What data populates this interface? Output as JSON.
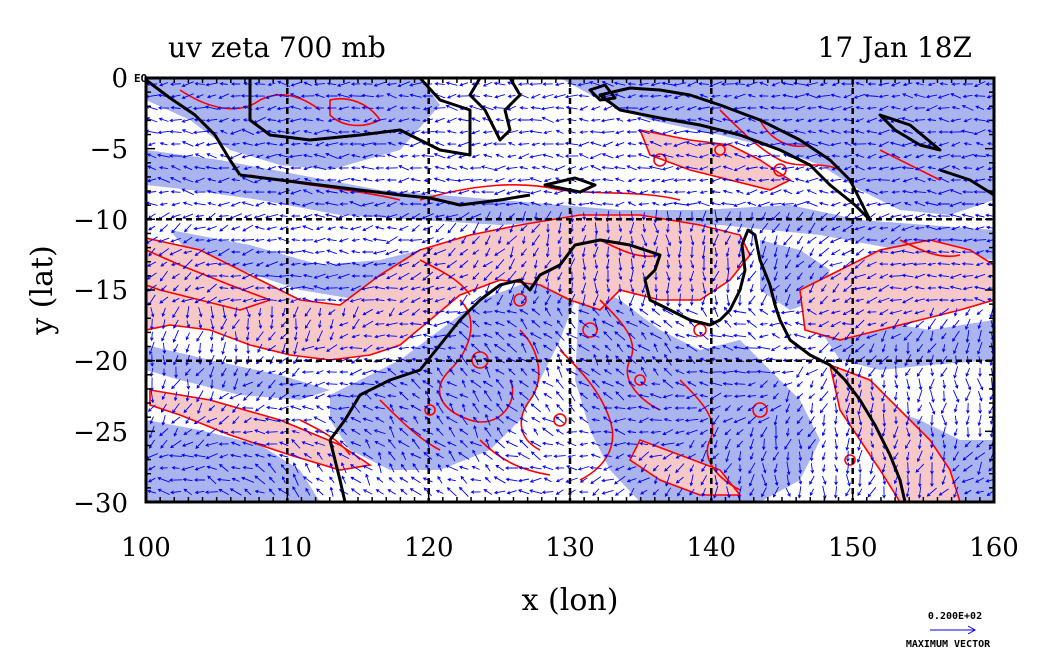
{
  "plot": {
    "title_left": "uv zeta 700 mb",
    "title_right": "17 Jan 18Z",
    "xlabel": "x (lon)",
    "ylabel": "y (lat)",
    "corner_label": "EQ",
    "x_ticks": [
      "100",
      "110",
      "120",
      "130",
      "140",
      "150",
      "160"
    ],
    "y_ticks": [
      "0",
      "−5",
      "−10",
      "−15",
      "−20",
      "−25",
      "−30"
    ],
    "vector_legend": {
      "value": "0.200E+02",
      "label": "MAXIMUM VECTOR"
    }
  },
  "map": {
    "lon_range": [
      100,
      160
    ],
    "lat_range": [
      -30,
      0
    ],
    "grid_lon": [
      110,
      120,
      130,
      140,
      150
    ],
    "grid_lat": [
      -10,
      -20
    ],
    "colors": {
      "positive_fill": "#f6c8c8",
      "negative_fill": "#aab4ee",
      "contour": "#ff0000",
      "vector": "#0000ff",
      "coast": "#000000"
    }
  }
}
